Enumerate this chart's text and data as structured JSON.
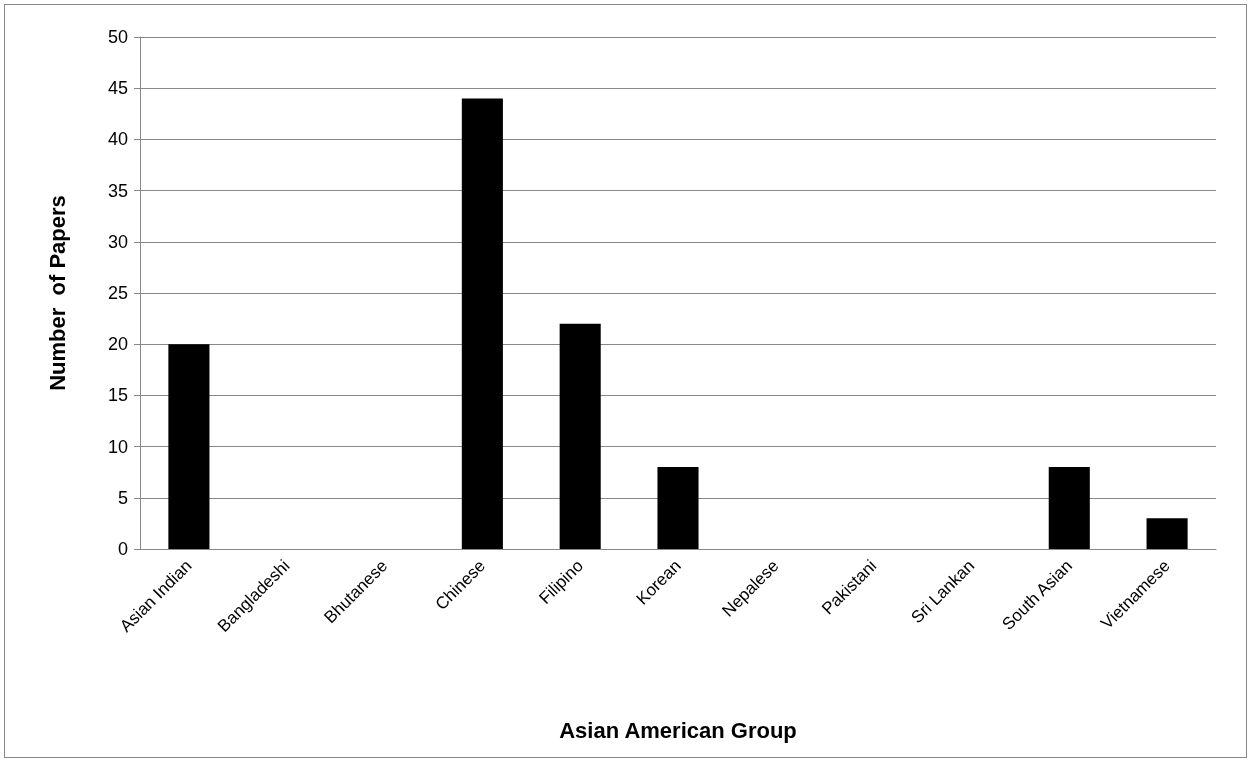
{
  "chart_data": {
    "type": "bar",
    "xlabel": "Asian American Group",
    "ylabel": "Number  of Papers",
    "categories": [
      "Asian Indian",
      "Bangladeshi",
      "Bhutanese",
      "Chinese",
      "Filipino",
      "Korean",
      "Nepalese",
      "Pakistani",
      "Sri Lankan",
      "South Asian",
      "Vietnamese"
    ],
    "values": [
      20,
      0,
      0,
      44,
      22,
      8,
      0,
      0,
      0,
      8,
      3
    ],
    "color": "#000000",
    "ylim": [
      0,
      50
    ],
    "yticks": [
      0,
      5,
      10,
      15,
      20,
      25,
      30,
      35,
      40,
      45,
      50
    ],
    "grid": "y"
  }
}
